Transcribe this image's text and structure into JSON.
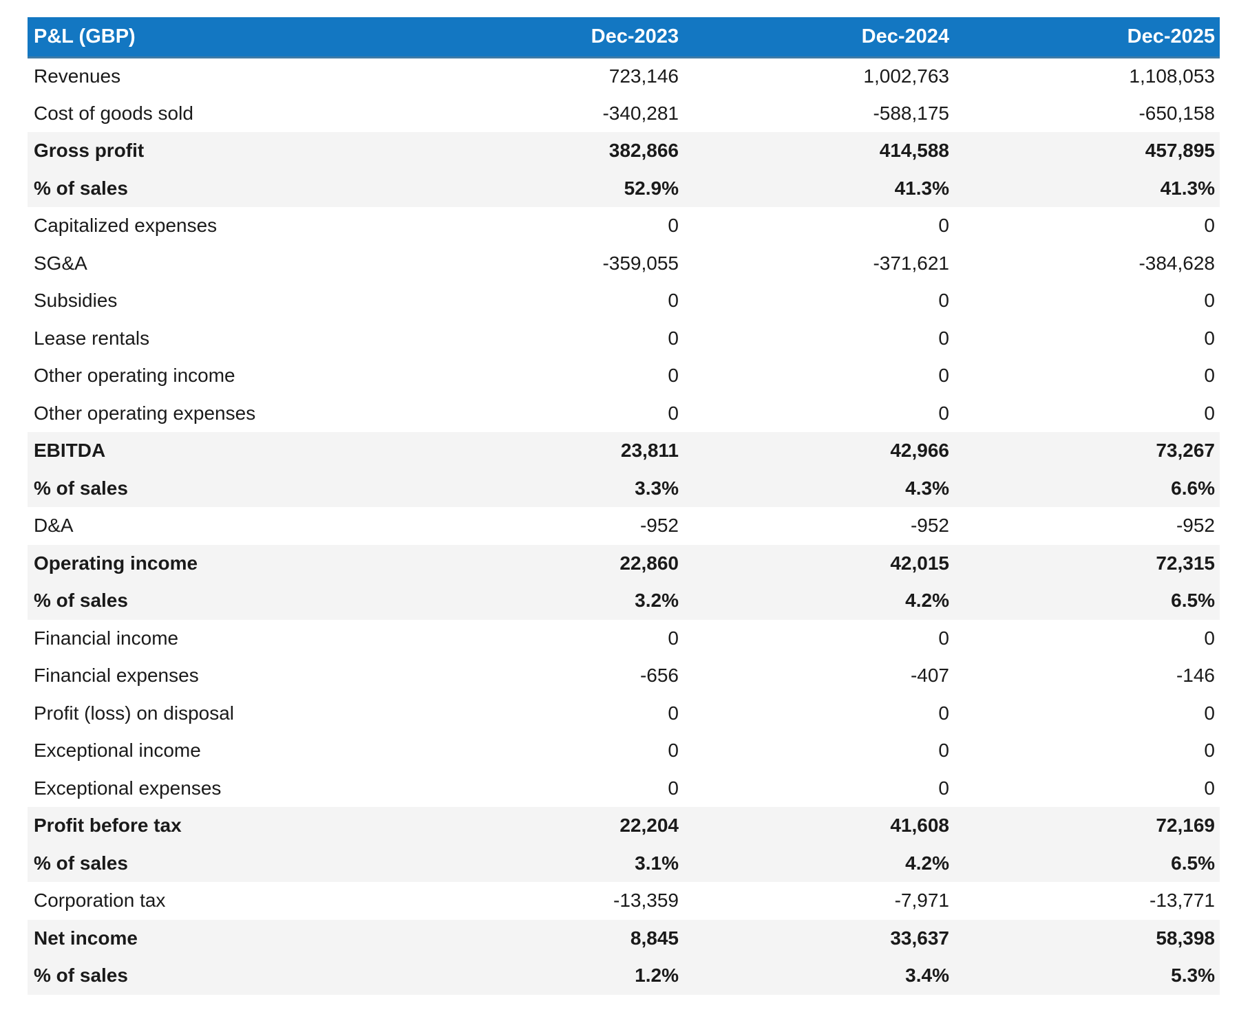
{
  "colors": {
    "header_bg": "#1377C2",
    "header_text": "#ffffff",
    "header_border": "#3f7ba7",
    "subtotal_bg": "#f4f4f4",
    "body_text": "#1a1a1a"
  },
  "table": {
    "header": {
      "title": "P&L (GBP)",
      "columns": [
        "Dec-2023",
        "Dec-2024",
        "Dec-2025"
      ]
    },
    "rows": [
      {
        "label": "Revenues",
        "values": [
          "723,146",
          "1,002,763",
          "1,108,053"
        ],
        "style": "normal"
      },
      {
        "label": "Cost of goods sold",
        "values": [
          "-340,281",
          "-588,175",
          "-650,158"
        ],
        "style": "normal"
      },
      {
        "label": "Gross profit",
        "values": [
          "382,866",
          "414,588",
          "457,895"
        ],
        "style": "subtotal"
      },
      {
        "label": "% of sales",
        "values": [
          "52.9%",
          "41.3%",
          "41.3%"
        ],
        "style": "subtotal"
      },
      {
        "label": "Capitalized expenses",
        "values": [
          "0",
          "0",
          "0"
        ],
        "style": "normal"
      },
      {
        "label": "SG&A",
        "values": [
          "-359,055",
          "-371,621",
          "-384,628"
        ],
        "style": "normal"
      },
      {
        "label": "Subsidies",
        "values": [
          "0",
          "0",
          "0"
        ],
        "style": "normal"
      },
      {
        "label": "Lease rentals",
        "values": [
          "0",
          "0",
          "0"
        ],
        "style": "normal"
      },
      {
        "label": "Other operating income",
        "values": [
          "0",
          "0",
          "0"
        ],
        "style": "normal"
      },
      {
        "label": "Other operating expenses",
        "values": [
          "0",
          "0",
          "0"
        ],
        "style": "normal"
      },
      {
        "label": "EBITDA",
        "values": [
          "23,811",
          "42,966",
          "73,267"
        ],
        "style": "subtotal"
      },
      {
        "label": "% of sales",
        "values": [
          "3.3%",
          "4.3%",
          "6.6%"
        ],
        "style": "subtotal"
      },
      {
        "label": "D&A",
        "values": [
          "-952",
          "-952",
          "-952"
        ],
        "style": "normal"
      },
      {
        "label": "Operating income",
        "values": [
          "22,860",
          "42,015",
          "72,315"
        ],
        "style": "subtotal"
      },
      {
        "label": "% of sales",
        "values": [
          "3.2%",
          "4.2%",
          "6.5%"
        ],
        "style": "subtotal"
      },
      {
        "label": "Financial income",
        "values": [
          "0",
          "0",
          "0"
        ],
        "style": "normal"
      },
      {
        "label": "Financial expenses",
        "values": [
          "-656",
          "-407",
          "-146"
        ],
        "style": "normal"
      },
      {
        "label": "Profit (loss) on disposal",
        "values": [
          "0",
          "0",
          "0"
        ],
        "style": "normal"
      },
      {
        "label": "Exceptional income",
        "values": [
          "0",
          "0",
          "0"
        ],
        "style": "normal"
      },
      {
        "label": "Exceptional expenses",
        "values": [
          "0",
          "0",
          "0"
        ],
        "style": "normal"
      },
      {
        "label": "Profit before tax",
        "values": [
          "22,204",
          "41,608",
          "72,169"
        ],
        "style": "subtotal"
      },
      {
        "label": "% of sales",
        "values": [
          "3.1%",
          "4.2%",
          "6.5%"
        ],
        "style": "subtotal"
      },
      {
        "label": "Corporation tax",
        "values": [
          "-13,359",
          "-7,971",
          "-13,771"
        ],
        "style": "normal"
      },
      {
        "label": "Net income",
        "values": [
          "8,845",
          "33,637",
          "58,398"
        ],
        "style": "subtotal"
      },
      {
        "label": "% of sales",
        "values": [
          "1.2%",
          "3.4%",
          "5.3%"
        ],
        "style": "subtotal"
      }
    ]
  },
  "chart_data": {
    "type": "table",
    "title": "P&L (GBP)",
    "columns": [
      "P&L (GBP)",
      "Dec-2023",
      "Dec-2024",
      "Dec-2025"
    ],
    "rows": [
      [
        "Revenues",
        723146,
        1002763,
        1108053
      ],
      [
        "Cost of goods sold",
        -340281,
        -588175,
        -650158
      ],
      [
        "Gross profit",
        382866,
        414588,
        457895
      ],
      [
        "Gross profit % of sales",
        "52.9%",
        "41.3%",
        "41.3%"
      ],
      [
        "Capitalized expenses",
        0,
        0,
        0
      ],
      [
        "SG&A",
        -359055,
        -371621,
        -384628
      ],
      [
        "Subsidies",
        0,
        0,
        0
      ],
      [
        "Lease rentals",
        0,
        0,
        0
      ],
      [
        "Other operating income",
        0,
        0,
        0
      ],
      [
        "Other operating expenses",
        0,
        0,
        0
      ],
      [
        "EBITDA",
        23811,
        42966,
        73267
      ],
      [
        "EBITDA % of sales",
        "3.3%",
        "4.3%",
        "6.6%"
      ],
      [
        "D&A",
        -952,
        -952,
        -952
      ],
      [
        "Operating income",
        22860,
        42015,
        72315
      ],
      [
        "Operating income % of sales",
        "3.2%",
        "4.2%",
        "6.5%"
      ],
      [
        "Financial income",
        0,
        0,
        0
      ],
      [
        "Financial expenses",
        -656,
        -407,
        -146
      ],
      [
        "Profit (loss) on disposal",
        0,
        0,
        0
      ],
      [
        "Exceptional income",
        0,
        0,
        0
      ],
      [
        "Exceptional expenses",
        0,
        0,
        0
      ],
      [
        "Profit before tax",
        22204,
        41608,
        72169
      ],
      [
        "Profit before tax % of sales",
        "3.1%",
        "4.2%",
        "6.5%"
      ],
      [
        "Corporation tax",
        -13359,
        -7971,
        -13771
      ],
      [
        "Net income",
        8845,
        33637,
        58398
      ],
      [
        "Net income % of sales",
        "1.2%",
        "3.4%",
        "5.3%"
      ]
    ],
    "layout": {
      "header_row_shaded": true,
      "subtotal_rows_shaded": true,
      "numeric_columns_aligned": "right"
    }
  }
}
